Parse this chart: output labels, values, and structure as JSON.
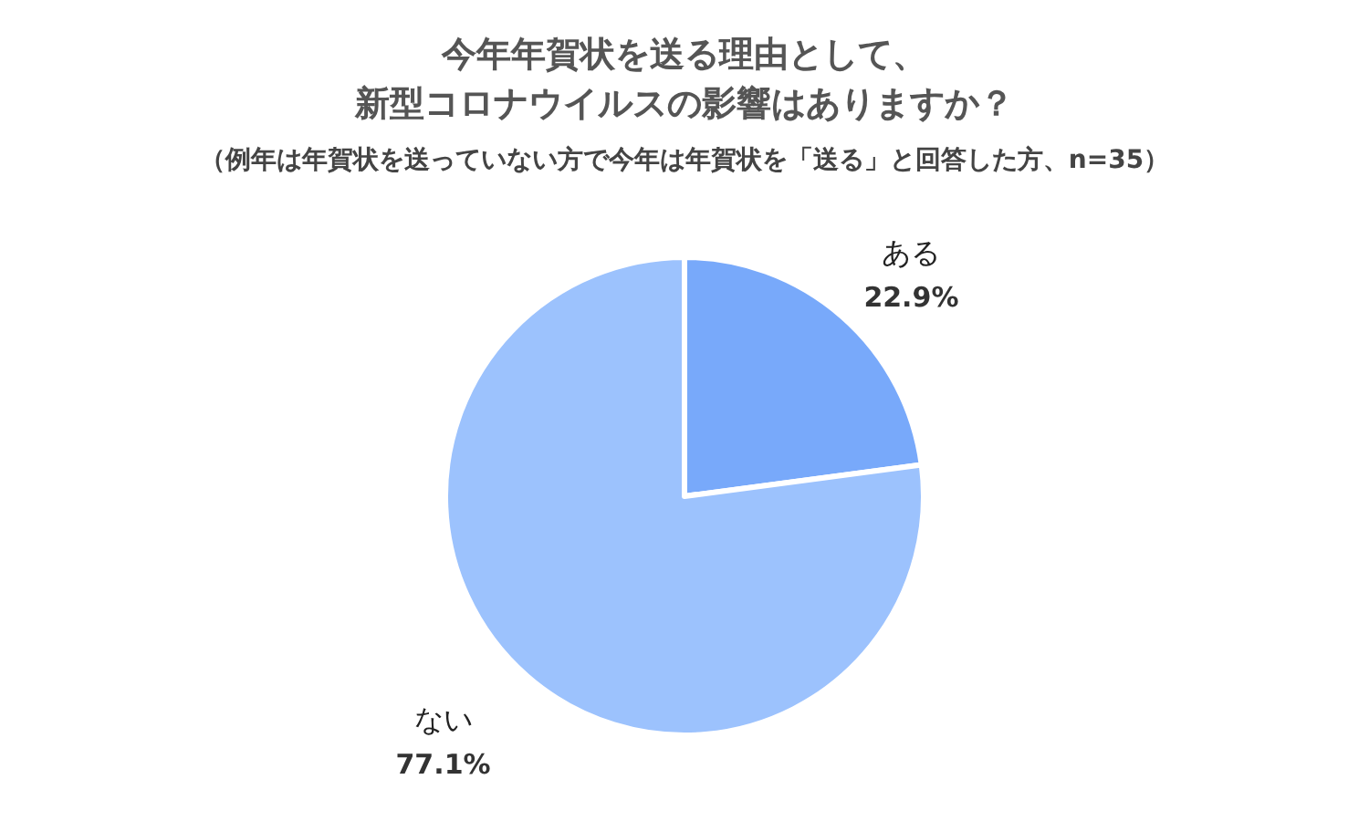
{
  "chart_data": {
    "type": "pie",
    "title": "今年年賀状を送る理由として、新型コロナウイルスの影響はありますか？",
    "subtitle": "（例年は年賀状を送っていない方で今年は年賀状を「送る」と回答した方、n=35）",
    "categories": [
      "ある",
      "ない"
    ],
    "values": [
      22.9,
      77.1
    ],
    "colors": [
      "#78a9fa",
      "#9cc2fd"
    ],
    "value_labels": [
      "22.9%",
      "77.1%"
    ]
  }
}
